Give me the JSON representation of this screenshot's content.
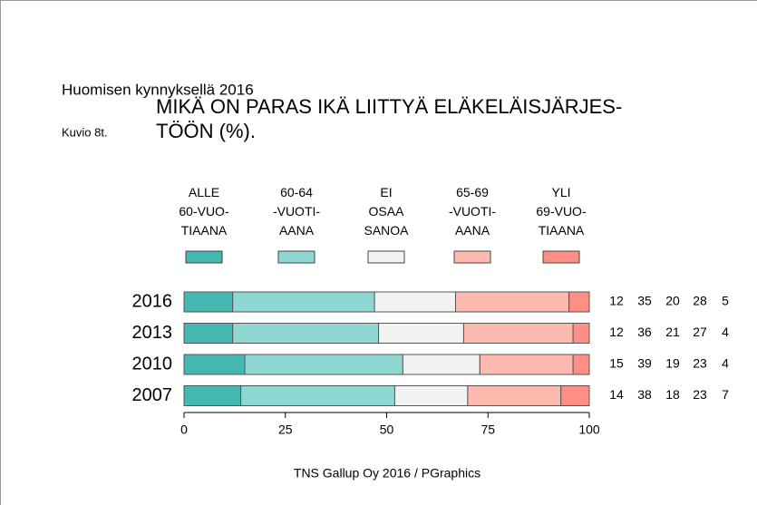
{
  "header": "Huomisen kynnyksellä 2016",
  "figure_label": "Kuvio 8t.",
  "chart_data": {
    "type": "stacked-bar-horizontal",
    "title": "MIKÄ ON PARAS IKÄ LIITTYÄ ELÄKELÄISJÄRJES-\nTÖÖN (%).",
    "categories": [
      "2016",
      "2013",
      "2010",
      "2007"
    ],
    "series": [
      {
        "name": "ALLE\n60-VUO-\nTIAANA",
        "color": "#45b8b1",
        "values": [
          12,
          12,
          15,
          14
        ]
      },
      {
        "name": "60-64\n-VUOTI-\nAANA",
        "color": "#8fd7d3",
        "values": [
          35,
          36,
          39,
          38
        ]
      },
      {
        "name": "EI\nOSAA\nSANOA",
        "color": "#f2f2f2",
        "values": [
          20,
          21,
          19,
          18
        ]
      },
      {
        "name": "65-69\n-VUOTI-\nAANA",
        "color": "#ffbaaf",
        "values": [
          28,
          27,
          23,
          23
        ]
      },
      {
        "name": "YLI\n69-VUO-\nTIAANA",
        "color": "#ff8f84",
        "values": [
          5,
          4,
          4,
          7
        ]
      }
    ],
    "xlim": [
      0,
      100
    ],
    "xticks": [
      0,
      25,
      50,
      75,
      100
    ],
    "source": "TNS Gallup Oy 2016 / PGraphics"
  }
}
